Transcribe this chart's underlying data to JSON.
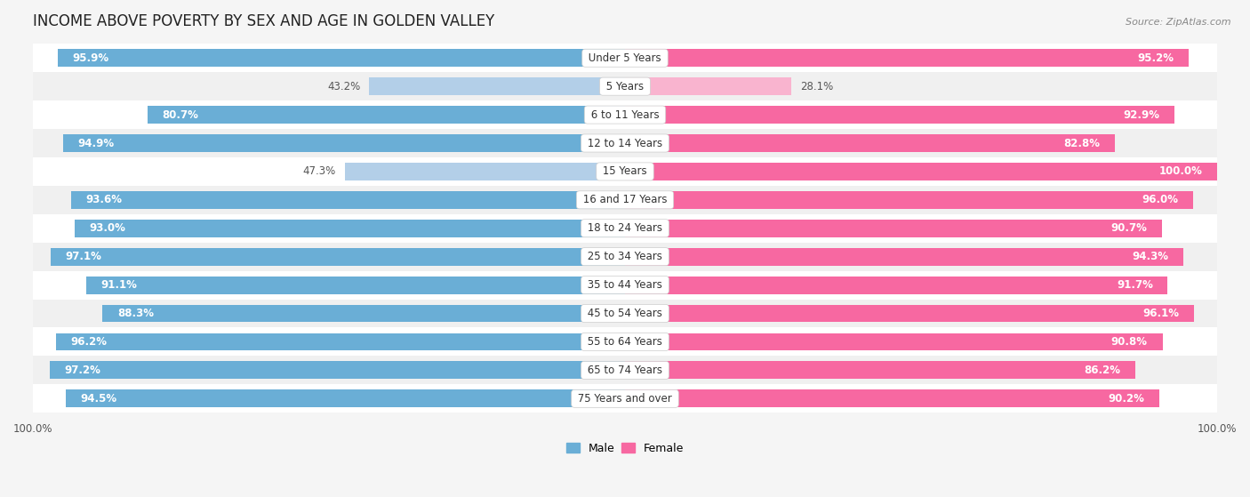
{
  "title": "INCOME ABOVE POVERTY BY SEX AND AGE IN GOLDEN VALLEY",
  "source": "Source: ZipAtlas.com",
  "categories": [
    "Under 5 Years",
    "5 Years",
    "6 to 11 Years",
    "12 to 14 Years",
    "15 Years",
    "16 and 17 Years",
    "18 to 24 Years",
    "25 to 34 Years",
    "35 to 44 Years",
    "45 to 54 Years",
    "55 to 64 Years",
    "65 to 74 Years",
    "75 Years and over"
  ],
  "male_values": [
    95.9,
    43.2,
    80.7,
    94.9,
    47.3,
    93.6,
    93.0,
    97.1,
    91.1,
    88.3,
    96.2,
    97.2,
    94.5
  ],
  "female_values": [
    95.2,
    28.1,
    92.9,
    82.8,
    100.0,
    96.0,
    90.7,
    94.3,
    91.7,
    96.1,
    90.8,
    86.2,
    90.2
  ],
  "male_color_strong": "#6aaed6",
  "male_color_light": "#b3cfe8",
  "female_color_strong": "#f768a1",
  "female_color_light": "#f9b4cf",
  "row_bg_white": "#ffffff",
  "row_bg_gray": "#f0f0f0",
  "label_bg": "#ffffff",
  "background_color": "#f5f5f5",
  "title_fontsize": 12,
  "label_fontsize": 8.5,
  "value_fontsize": 8.5,
  "tick_fontsize": 8.5,
  "bar_height": 0.62,
  "threshold": 60
}
